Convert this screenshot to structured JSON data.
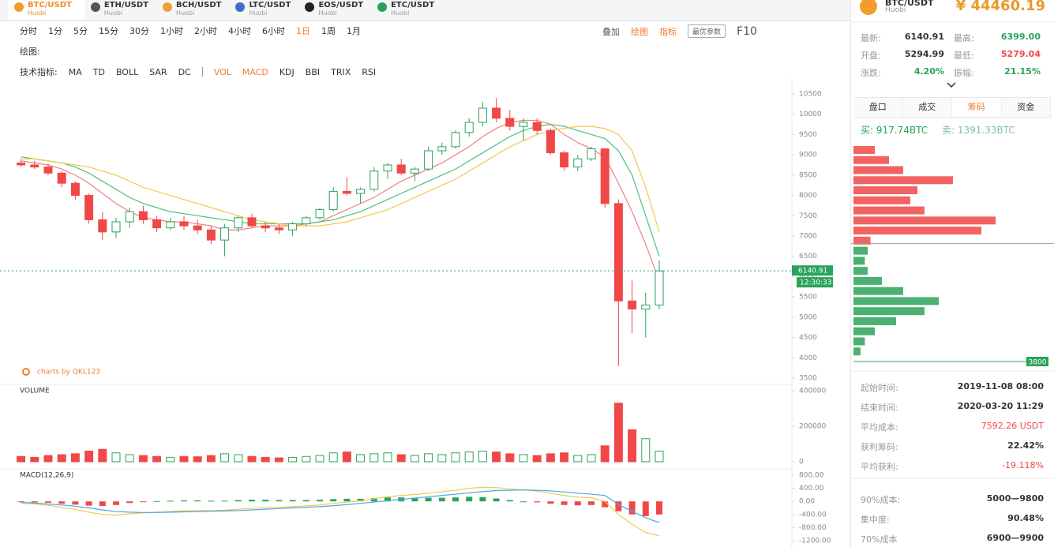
{
  "tabs": [
    {
      "symbol": "BTC/USDT",
      "exchange": "Huobi"
    },
    {
      "symbol": "ETH/USDT",
      "exchange": "Huobi"
    },
    {
      "symbol": "BCH/USDT",
      "exchange": "Huobi"
    },
    {
      "symbol": "LTC/USDT",
      "exchange": "Huobi"
    },
    {
      "symbol": "EOS/USDT",
      "exchange": "Huobi"
    },
    {
      "symbol": "ETC/USDT",
      "exchange": "Huobi"
    }
  ],
  "timeframes": [
    "分时",
    "1分",
    "5分",
    "15分",
    "30分",
    "1小时",
    "2小时",
    "4小时",
    "6小时",
    "1日",
    "1周",
    "1月"
  ],
  "active_timeframe_index": 9,
  "tools": [
    "叠加",
    "绘图",
    "指标",
    "最优参数",
    "F10"
  ],
  "drawing_label": "绘图:",
  "indicators_label": "技术指标:",
  "indicators_main": [
    "MA",
    "TD",
    "BOLL",
    "SAR",
    "DC"
  ],
  "indicators_sub": [
    {
      "label": "VOL",
      "active": true
    },
    {
      "label": "MACD",
      "active": true
    },
    {
      "label": "KDJ",
      "active": false
    },
    {
      "label": "BBI",
      "active": false
    },
    {
      "label": "TRIX",
      "active": false
    },
    {
      "label": "RSI",
      "active": false
    }
  ],
  "watermark": "charts by QKL123",
  "chart_data": [
    {
      "type": "candlestick",
      "up_color": "#2aa35a",
      "down_color": "#f04848",
      "open": [
        8800,
        8750,
        8700,
        8550,
        8300,
        8000,
        7400,
        7100,
        7350,
        7600,
        7400,
        7200,
        7350,
        7250,
        7150,
        6900,
        7200,
        7450,
        7250,
        7200,
        7150,
        7300,
        7450,
        7650,
        8100,
        8050,
        8150,
        8600,
        8750,
        8550,
        8650,
        9100,
        9200,
        9550,
        9800,
        10150,
        9900,
        9700,
        9800,
        9600,
        9050,
        8700,
        8900,
        9150,
        7800,
        5400,
        5200,
        5300
      ],
      "high": [
        8900,
        8850,
        8780,
        8600,
        8350,
        8050,
        7600,
        7450,
        7700,
        7750,
        7500,
        7450,
        7500,
        7400,
        7250,
        7300,
        7500,
        7550,
        7350,
        7300,
        7350,
        7500,
        7700,
        8200,
        8450,
        8200,
        8700,
        8800,
        8900,
        8700,
        9200,
        9300,
        9600,
        9900,
        10300,
        10400,
        10100,
        9900,
        9900,
        9650,
        9100,
        9000,
        9200,
        9150,
        7900,
        5900,
        5600,
        6400
      ],
      "low": [
        8700,
        8650,
        8500,
        8200,
        7900,
        7300,
        6900,
        6950,
        7200,
        7300,
        7100,
        7150,
        7150,
        7050,
        6800,
        6500,
        7100,
        7200,
        7100,
        7050,
        7000,
        7250,
        7400,
        7600,
        8000,
        7800,
        8100,
        8400,
        8500,
        8350,
        8600,
        9000,
        9150,
        9450,
        9700,
        9800,
        9600,
        9350,
        9500,
        9000,
        8600,
        8600,
        8850,
        7700,
        3800,
        4600,
        4500,
        5200
      ],
      "close": [
        8750,
        8700,
        8550,
        8300,
        8000,
        7400,
        7100,
        7350,
        7600,
        7400,
        7200,
        7350,
        7250,
        7150,
        6900,
        7200,
        7450,
        7250,
        7200,
        7150,
        7300,
        7450,
        7650,
        8100,
        8050,
        8150,
        8600,
        8750,
        8550,
        8650,
        9100,
        9200,
        9550,
        9800,
        10150,
        9900,
        9700,
        9800,
        9600,
        9050,
        8700,
        8900,
        9150,
        7800,
        5400,
        5200,
        5300,
        6140.91
      ],
      "ma_lines": [
        {
          "color": "#f08080",
          "values": [
            8850,
            8800,
            8750,
            8650,
            8500,
            8300,
            8050,
            7800,
            7600,
            7450,
            7400,
            7350,
            7350,
            7300,
            7250,
            7150,
            7150,
            7200,
            7250,
            7250,
            7250,
            7300,
            7350,
            7500,
            7650,
            7800,
            7950,
            8150,
            8350,
            8500,
            8650,
            8800,
            9000,
            9200,
            9450,
            9650,
            9800,
            9850,
            9850,
            9750,
            9500,
            9300,
            9150,
            8950,
            8300,
            7600,
            6800,
            5900
          ]
        },
        {
          "color": "#4cc07a",
          "values": [
            8950,
            8900,
            8850,
            8800,
            8700,
            8550,
            8350,
            8150,
            7950,
            7800,
            7700,
            7600,
            7550,
            7500,
            7450,
            7400,
            7350,
            7300,
            7300,
            7300,
            7300,
            7300,
            7350,
            7400,
            7500,
            7600,
            7750,
            7900,
            8050,
            8200,
            8350,
            8500,
            8650,
            8850,
            9050,
            9250,
            9450,
            9600,
            9700,
            9750,
            9700,
            9600,
            9500,
            9400,
            9100,
            8500,
            7500,
            6500
          ]
        },
        {
          "color": "#f2c94c",
          "values": [
            8900,
            8900,
            8850,
            8800,
            8750,
            8700,
            8600,
            8500,
            8350,
            8200,
            8100,
            8000,
            7900,
            7800,
            7700,
            7600,
            7500,
            7400,
            7350,
            7300,
            7250,
            7250,
            7250,
            7300,
            7350,
            7450,
            7550,
            7650,
            7800,
            7950,
            8100,
            8250,
            8400,
            8600,
            8800,
            9000,
            9200,
            9350,
            9500,
            9600,
            9650,
            9700,
            9700,
            9650,
            9500,
            9100,
            8200,
            7100
          ]
        }
      ],
      "ylim": [
        3500,
        10500
      ],
      "yticks": [
        3500,
        4000,
        4500,
        5000,
        5500,
        6000,
        6500,
        7000,
        7500,
        8000,
        8500,
        9000,
        9500,
        10000,
        10500
      ],
      "last_price": 6140.91,
      "last_time": "12:30:33"
    },
    {
      "type": "bar",
      "title": "VOLUME",
      "values": [
        30000,
        25000,
        35000,
        40000,
        45000,
        60000,
        70000,
        50000,
        40000,
        35000,
        30000,
        25000,
        30000,
        28000,
        35000,
        45000,
        40000,
        30000,
        25000,
        22000,
        25000,
        30000,
        35000,
        50000,
        55000,
        40000,
        45000,
        50000,
        40000,
        35000,
        45000,
        40000,
        50000,
        55000,
        60000,
        55000,
        45000,
        40000,
        35000,
        45000,
        50000,
        35000,
        40000,
        90000,
        330000,
        180000,
        130000,
        60000
      ],
      "ylim": [
        0,
        400000
      ],
      "yticks": [
        0,
        200000,
        400000
      ]
    },
    {
      "type": "macd",
      "title": "MACD(12,26,9)",
      "series": [
        {
          "color": "#f2c94c",
          "values": [
            -50,
            -80,
            -120,
            -180,
            -250,
            -330,
            -400,
            -420,
            -380,
            -350,
            -330,
            -310,
            -290,
            -280,
            -280,
            -270,
            -240,
            -210,
            -190,
            -180,
            -160,
            -140,
            -110,
            -60,
            -20,
            20,
            80,
            140,
            180,
            210,
            250,
            290,
            340,
            400,
            430,
            420,
            380,
            350,
            310,
            250,
            180,
            130,
            110,
            0,
            -400,
            -700,
            -950,
            -1050
          ]
        },
        {
          "color": "#4aa8e8",
          "values": [
            -30,
            -50,
            -80,
            -110,
            -150,
            -200,
            -260,
            -310,
            -330,
            -340,
            -340,
            -330,
            -320,
            -310,
            -300,
            -290,
            -280,
            -260,
            -240,
            -220,
            -200,
            -180,
            -160,
            -130,
            -100,
            -60,
            -20,
            20,
            60,
            100,
            140,
            180,
            220,
            260,
            300,
            330,
            340,
            350,
            340,
            320,
            290,
            250,
            220,
            180,
            -100,
            -300,
            -500,
            -650
          ]
        }
      ],
      "histogram": [
        -20,
        -30,
        -40,
        -70,
        -100,
        -130,
        -140,
        -110,
        -50,
        -10,
        10,
        20,
        30,
        30,
        20,
        20,
        40,
        50,
        50,
        40,
        40,
        40,
        50,
        70,
        80,
        80,
        100,
        120,
        120,
        110,
        110,
        110,
        120,
        140,
        130,
        90,
        40,
        0,
        -30,
        -70,
        -110,
        -120,
        -110,
        -180,
        -300,
        -400,
        -450,
        -400
      ],
      "ylim": [
        -1200,
        800
      ],
      "yticks": [
        {
          "value": 800,
          "label": "800.00"
        },
        {
          "value": 400,
          "label": "400.00"
        },
        {
          "value": 0,
          "label": "0.00"
        },
        {
          "value": -400,
          "label": "-400.00"
        },
        {
          "value": -800,
          "label": "-800.00"
        },
        {
          "value": -1200,
          "label": "-1200.00"
        }
      ]
    }
  ],
  "sidebar": {
    "symbol": "BTC/USDT",
    "exchange": "Huobi",
    "price": "¥ 44460.19",
    "stats": [
      {
        "label": "最新:",
        "value": "6140.91"
      },
      {
        "label": "最高:",
        "value": "6399.00"
      },
      {
        "label": "开盘:",
        "value": "5294.99"
      },
      {
        "label": "最低:",
        "value": "5279.04"
      },
      {
        "label": "涨跌:",
        "value": "4.20%"
      },
      {
        "label": "振幅:",
        "value": "21.15%"
      }
    ],
    "tabs": [
      "盘口",
      "成交",
      "筹码",
      "资金"
    ],
    "active_tab_index": 2,
    "buy_label": "买:",
    "buy_value": "917.74BTC",
    "sell_label": "卖:",
    "sell_value": "1391.33BTC",
    "chips": {
      "prices": [
        4000,
        4200,
        4400,
        4600,
        4800,
        5000,
        5200,
        5400,
        5600,
        5800,
        6000,
        6200,
        6400,
        6600,
        6800,
        7000,
        7200,
        7400,
        7600,
        7800,
        8000
      ],
      "values": [
        5,
        8,
        15,
        30,
        50,
        60,
        35,
        20,
        10,
        8,
        10,
        12,
        90,
        100,
        50,
        40,
        45,
        70,
        35,
        25,
        15
      ],
      "ylim": [
        3800,
        8000
      ],
      "xlim": [
        0,
        100
      ],
      "above_color": "#f04848",
      "below_color": "#2aa35a"
    },
    "info": [
      {
        "label": "起始时间:",
        "value": "2019-11-08 08:00"
      },
      {
        "label": "结束时间:",
        "value": "2020-03-20 11:29"
      },
      {
        "label": "平均成本:",
        "value": "7592.26 USDT"
      },
      {
        "label": "获利筹码:",
        "value": "22.42%"
      },
      {
        "label": "平均获利:",
        "value": "-19.118%"
      }
    ],
    "cost": [
      {
        "label": "90%成本:",
        "value": "5000—9800"
      },
      {
        "label": "集中度:",
        "value": "90.48%"
      },
      {
        "label": "70%成本",
        "value": "6900—9900"
      }
    ]
  }
}
